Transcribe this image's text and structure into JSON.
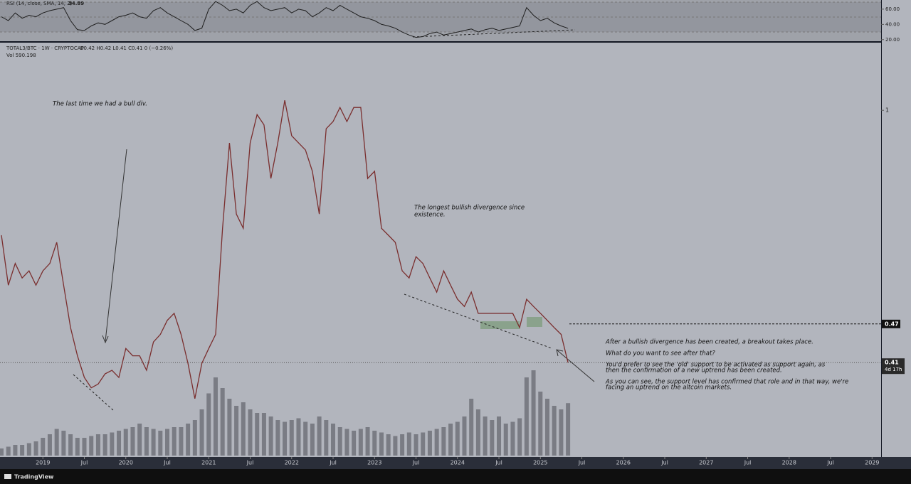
{
  "chart_data": [
    {
      "type": "line",
      "title": "RSI (14, close, SMA, 14, 2)",
      "current": "34.89",
      "color": "#1f1f1f",
      "x": [
        "2018-07",
        "2018-08",
        "2018-09",
        "2018-10",
        "2018-11",
        "2018-12",
        "2019-01",
        "2019-02",
        "2019-03",
        "2019-04",
        "2019-05",
        "2019-06",
        "2019-07",
        "2019-08",
        "2019-09",
        "2019-10",
        "2019-11",
        "2019-12",
        "2020-01",
        "2020-02",
        "2020-03",
        "2020-04",
        "2020-05",
        "2020-06",
        "2020-07",
        "2020-08",
        "2020-09",
        "2020-10",
        "2020-11",
        "2020-12",
        "2021-01",
        "2021-02",
        "2021-03",
        "2021-04",
        "2021-05",
        "2021-06",
        "2021-07",
        "2021-08",
        "2021-09",
        "2021-10",
        "2021-11",
        "2021-12",
        "2022-01",
        "2022-02",
        "2022-03",
        "2022-04",
        "2022-05",
        "2022-06",
        "2022-07",
        "2022-08",
        "2022-09",
        "2022-10",
        "2022-11",
        "2022-12",
        "2023-01",
        "2023-02",
        "2023-03",
        "2023-04",
        "2023-05",
        "2023-06",
        "2023-07",
        "2023-08",
        "2023-09",
        "2023-10",
        "2023-11",
        "2023-12",
        "2024-01",
        "2024-02",
        "2024-03",
        "2024-04",
        "2024-05",
        "2024-06",
        "2024-07",
        "2024-08",
        "2024-09",
        "2024-10",
        "2024-11",
        "2024-12",
        "2025-01",
        "2025-02",
        "2025-03",
        "2025-04",
        "2025-05"
      ],
      "values": [
        50,
        45,
        55,
        48,
        52,
        50,
        55,
        58,
        60,
        62,
        45,
        33,
        32,
        38,
        42,
        40,
        45,
        50,
        52,
        55,
        50,
        48,
        58,
        62,
        55,
        50,
        45,
        40,
        32,
        35,
        60,
        70,
        65,
        58,
        60,
        55,
        65,
        70,
        62,
        58,
        60,
        62,
        55,
        60,
        58,
        50,
        55,
        62,
        58,
        65,
        60,
        55,
        50,
        48,
        45,
        40,
        38,
        35,
        30,
        26,
        23,
        24,
        28,
        30,
        26,
        28,
        30,
        32,
        34,
        30,
        33,
        35,
        32,
        34,
        36,
        38,
        62,
        52,
        45,
        48,
        42,
        38,
        34.89
      ],
      "ylim": [
        17,
        72
      ],
      "yticks": [
        {
          "value": 60,
          "label": "60.00"
        },
        {
          "value": 40,
          "label": "40.00"
        },
        {
          "value": 20,
          "label": "20.00"
        }
      ],
      "xlim": [
        "2018-07",
        "2029-02"
      ]
    },
    {
      "type": "line",
      "symbol": "TOTAL3/BTC · 1W · CRYPTOCAP",
      "ohlc": "O0.42 H0.42 L0.41 C0.41 0 (−0.26%)",
      "volume_label": "Vol 590.198",
      "color": "#7a2e2e",
      "log": true,
      "x": [
        "2018-07",
        "2018-08",
        "2018-09",
        "2018-10",
        "2018-11",
        "2018-12",
        "2019-01",
        "2019-02",
        "2019-03",
        "2019-04",
        "2019-05",
        "2019-06",
        "2019-07",
        "2019-08",
        "2019-09",
        "2019-10",
        "2019-11",
        "2019-12",
        "2020-01",
        "2020-02",
        "2020-03",
        "2020-04",
        "2020-05",
        "2020-06",
        "2020-07",
        "2020-08",
        "2020-09",
        "2020-10",
        "2020-11",
        "2020-12",
        "2021-01",
        "2021-02",
        "2021-03",
        "2021-04",
        "2021-05",
        "2021-06",
        "2021-07",
        "2021-08",
        "2021-09",
        "2021-10",
        "2021-11",
        "2021-12",
        "2022-01",
        "2022-02",
        "2022-03",
        "2022-04",
        "2022-05",
        "2022-06",
        "2022-07",
        "2022-08",
        "2022-09",
        "2022-10",
        "2022-11",
        "2022-12",
        "2023-01",
        "2023-02",
        "2023-03",
        "2023-04",
        "2023-05",
        "2023-06",
        "2023-07",
        "2023-08",
        "2023-09",
        "2023-10",
        "2023-11",
        "2023-12",
        "2024-01",
        "2024-02",
        "2024-03",
        "2024-04",
        "2024-05",
        "2024-06",
        "2024-07",
        "2024-08",
        "2024-09",
        "2024-10",
        "2024-11",
        "2024-12",
        "2025-01",
        "2025-02",
        "2025-03",
        "2025-04",
        "2025-05"
      ],
      "values": [
        0.643,
        0.539,
        0.582,
        0.553,
        0.567,
        0.539,
        0.567,
        0.582,
        0.627,
        0.539,
        0.464,
        0.42,
        0.389,
        0.375,
        0.38,
        0.394,
        0.399,
        0.389,
        0.431,
        0.42,
        0.42,
        0.399,
        0.441,
        0.453,
        0.476,
        0.488,
        0.453,
        0.409,
        0.361,
        0.409,
        0.431,
        0.453,
        0.659,
        0.891,
        0.693,
        0.659,
        0.891,
        0.985,
        0.95,
        0.786,
        0.891,
        1.036,
        0.914,
        0.891,
        0.869,
        0.806,
        0.693,
        0.937,
        0.961,
        1.01,
        0.961,
        1.01,
        1.01,
        0.786,
        0.806,
        0.659,
        0.643,
        0.627,
        0.567,
        0.553,
        0.596,
        0.582,
        0.553,
        0.526,
        0.567,
        0.539,
        0.513,
        0.5,
        0.526,
        0.488,
        0.488,
        0.488,
        0.488,
        0.488,
        0.488,
        0.464,
        0.513,
        0.5,
        0.488,
        0.476,
        0.464,
        0.453,
        0.41
      ],
      "volume": [
        80,
        100,
        120,
        120,
        140,
        160,
        200,
        240,
        300,
        280,
        240,
        200,
        200,
        220,
        240,
        240,
        260,
        280,
        300,
        320,
        360,
        320,
        300,
        280,
        300,
        320,
        320,
        360,
        400,
        520,
        700,
        880,
        760,
        640,
        560,
        600,
        520,
        480,
        480,
        440,
        400,
        380,
        400,
        420,
        380,
        360,
        440,
        400,
        360,
        320,
        300,
        280,
        300,
        320,
        280,
        260,
        240,
        220,
        240,
        260,
        240,
        260,
        280,
        300,
        320,
        360,
        380,
        440,
        640,
        520,
        440,
        400,
        440,
        360,
        380,
        420,
        880,
        960,
        720,
        640,
        560,
        520,
        590.198
      ],
      "volume_color": "#6b6e75",
      "volume_lim": [
        0,
        1200
      ],
      "ylim": [
        0.285,
        1.27
      ],
      "yticks": [
        1
      ],
      "xlim": [
        "2018-07",
        "2029-02"
      ],
      "xticks": [
        {
          "value": "2019-01",
          "label": "2019"
        },
        {
          "value": "2019-07",
          "label": "Jul"
        },
        {
          "value": "2020-01",
          "label": "2020"
        },
        {
          "value": "2020-07",
          "label": "Jul"
        },
        {
          "value": "2021-01",
          "label": "2021"
        },
        {
          "value": "2021-07",
          "label": "Jul"
        },
        {
          "value": "2022-01",
          "label": "2022"
        },
        {
          "value": "2022-07",
          "label": "Jul"
        },
        {
          "value": "2023-01",
          "label": "2023"
        },
        {
          "value": "2023-07",
          "label": "Jul"
        },
        {
          "value": "2024-01",
          "label": "2024"
        },
        {
          "value": "2024-07",
          "label": "Jul"
        },
        {
          "value": "2025-01",
          "label": "2025"
        },
        {
          "value": "2025-07",
          "label": "Jul"
        },
        {
          "value": "2026-01",
          "label": "2026"
        },
        {
          "value": "2026-07",
          "label": "Jul"
        },
        {
          "value": "2027-01",
          "label": "2027"
        },
        {
          "value": "2027-07",
          "label": "Jul"
        },
        {
          "value": "2028-01",
          "label": "2028"
        },
        {
          "value": "2028-07",
          "label": "Jul"
        },
        {
          "value": "2029-01",
          "label": "2029"
        }
      ],
      "level": {
        "value": 0.47,
        "label": "0.47"
      },
      "last": {
        "value": 0.41,
        "label": "0.41"
      },
      "countdown": "4d 17h",
      "annotations": [
        "The last time we had a bull div.",
        "The longest bullish divergence since",
        "existence.",
        "After a bullish divergence has been created, a breakout takes place.",
        "What do you want to see after that?",
        "You'd prefer to see the 'old' support to be activated as support again, as",
        "then the confirmation of a new uptrend has been created.",
        "As you can see, the support level has confirmed that role and in that way, we're",
        "facing an uptrend on the altcoin markets."
      ]
    }
  ],
  "brand": "TradingView"
}
